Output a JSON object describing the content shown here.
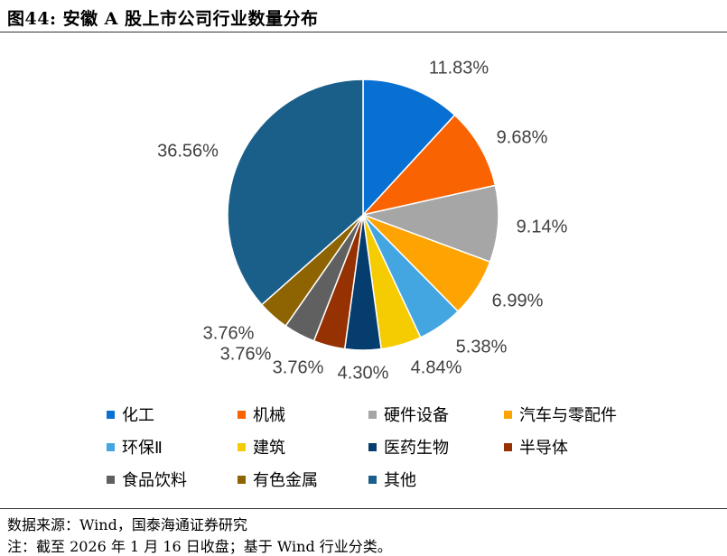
{
  "figure_title": "图44:  安徽 A 股上市公司行业数量分布",
  "source_text": "数据来源：Wind，国泰海通证券研究",
  "note_text": "注：截至 2026 年 1 月 16 日收盘；基于 Wind 行业分类。",
  "chart_data": {
    "type": "pie",
    "title": "",
    "legend_position": "bottom",
    "categories": [
      "化工",
      "机械",
      "硬件设备",
      "汽车与零配件",
      "环保Ⅱ",
      "建筑",
      "医药生物",
      "半导体",
      "食品饮料",
      "有色金属",
      "其他"
    ],
    "values": [
      11.83,
      9.68,
      9.14,
      6.99,
      5.38,
      4.84,
      4.3,
      3.76,
      3.76,
      3.76,
      36.56
    ],
    "labels": [
      "11.83%",
      "9.68%",
      "9.14%",
      "6.99%",
      "5.38%",
      "4.84%",
      "4.30%",
      "3.76%",
      "3.76%",
      "3.76%",
      "36.56%"
    ],
    "colors": [
      "#0870d2",
      "#f96302",
      "#a6a6a6",
      "#fea402",
      "#44a6e0",
      "#f5cc02",
      "#053d6e",
      "#963102",
      "#606060",
      "#8e6302",
      "#1a5f8a"
    ]
  }
}
